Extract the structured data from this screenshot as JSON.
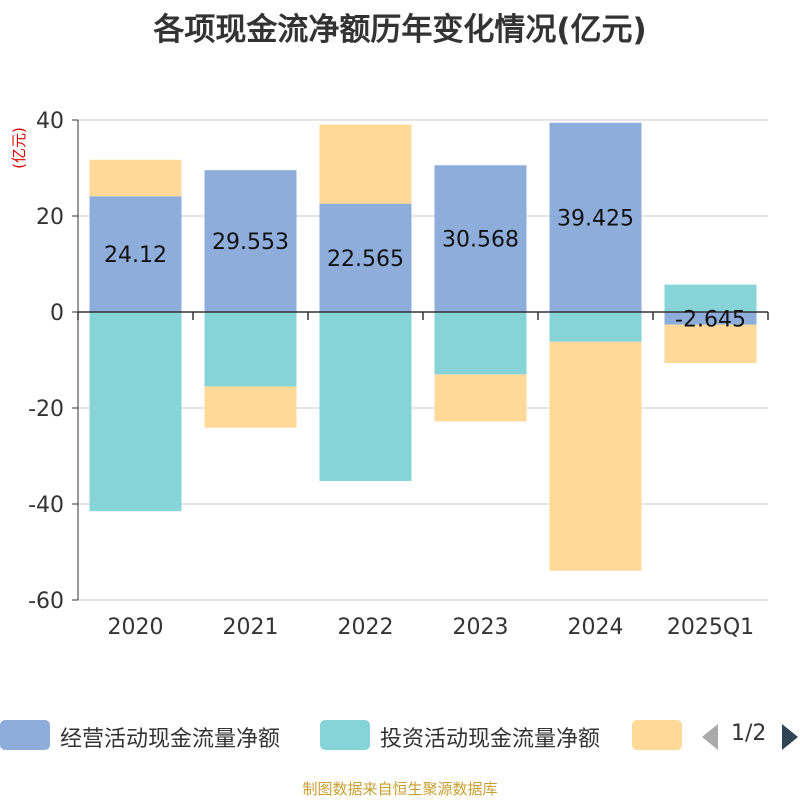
{
  "title": "各项现金流净额历年变化情况(亿元)",
  "source": "制图数据来自恒生聚源数据库",
  "colors": {
    "operating": "#8eadda",
    "investing": "#86d4d8",
    "financing": "#fed998",
    "ylabel": "#dd0000",
    "grid": "#cccccc",
    "axis": "#333333",
    "pager_active": "#2f4554",
    "pager_inactive": "#aaaaaa",
    "source": "#c8a032"
  },
  "legend": {
    "items": [
      {
        "label": "经营活动现金流量净额",
        "color": "#8eadda"
      },
      {
        "label": "投资活动现金流量净额",
        "color": "#86d4d8"
      },
      {
        "label": "",
        "color": "#fed998"
      }
    ],
    "page": "1/2"
  },
  "chart_data": {
    "type": "bar",
    "stacked": true,
    "ylabel": "(亿元)",
    "ylim": [
      -60,
      40
    ],
    "yticks": [
      -60,
      -40,
      -20,
      0,
      20,
      40
    ],
    "categories": [
      "2020",
      "2021",
      "2022",
      "2023",
      "2024",
      "2025Q1"
    ],
    "series": [
      {
        "name": "经营活动现金流量净额",
        "color": "#8eadda",
        "values": [
          24.12,
          29.553,
          22.565,
          30.568,
          39.425,
          -2.645
        ],
        "labels": [
          "24.12",
          "29.553",
          "22.565",
          "30.568",
          "39.425",
          "-2.645"
        ]
      },
      {
        "name": "投资活动现金流量净额",
        "color": "#86d4d8",
        "values": [
          -41.5,
          -15.5,
          -35.2,
          -13.0,
          -6.2,
          5.7
        ]
      },
      {
        "name": "",
        "color": "#fed998",
        "values": [
          7.6,
          -8.6,
          16.5,
          -9.8,
          -47.7,
          -8.0
        ]
      }
    ]
  }
}
